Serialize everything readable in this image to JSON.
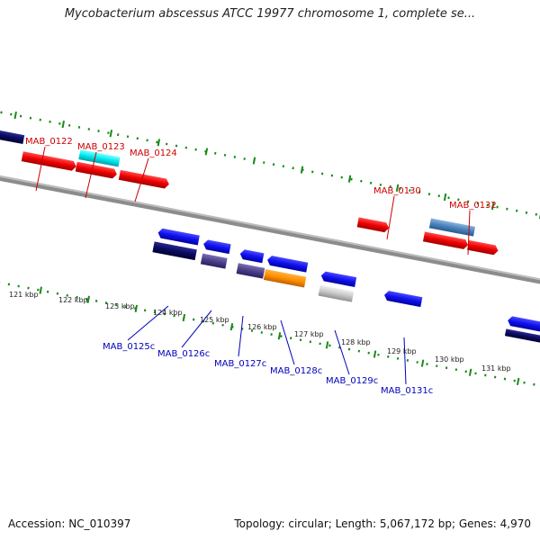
{
  "title": "Mycobacterium abscessus ATCC 19977 chromosome 1, complete se...",
  "footer": {
    "accession": "Accession: NC_010397",
    "summary": "Topology: circular; Length: 5,067,172 bp; Genes: 4,970"
  },
  "colors": {
    "forward_label": "#cc0000",
    "reverse_label": "#0000bb",
    "backbone": "#888888",
    "ticks": "#1a8a1a"
  },
  "scale_ticks": [
    "121 kbp",
    "122 kbp",
    "123 kbp",
    "124 kbp",
    "125 kbp",
    "126 kbp",
    "127 kbp",
    "128 kbp",
    "129 kbp",
    "130 kbp",
    "131 kbp"
  ],
  "forward_labels": [
    "MAB_0122",
    "MAB_0123",
    "MAB_0124",
    "MAB_0130",
    "MAB_0132"
  ],
  "reverse_labels": [
    "MAB_0125c",
    "MAB_0126c",
    "MAB_0127c",
    "MAB_0128c",
    "MAB_0129c",
    "MAB_0131c"
  ]
}
